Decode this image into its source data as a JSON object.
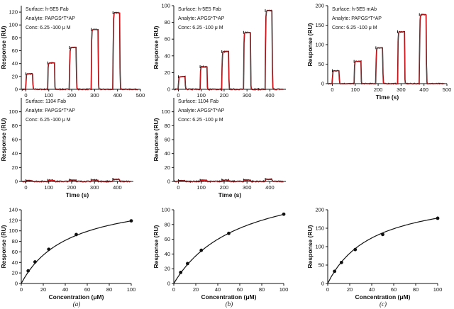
{
  "colors": {
    "sensorgram": "#111111",
    "fit": "#e0151b",
    "axis": "#111111"
  },
  "column_captions": [
    "(a)",
    "(b)",
    "(c)"
  ],
  "chart_data": [
    {
      "id": "a-top",
      "type": "line",
      "subtype": "sensorgram",
      "xlabel": "",
      "ylabel": "Response (RU)",
      "xlim": [
        -20,
        500
      ],
      "ylim": [
        0,
        130
      ],
      "xticks": [
        0,
        100,
        200,
        300,
        400,
        500
      ],
      "yticks": [
        0,
        20,
        40,
        60,
        80,
        100,
        120
      ],
      "annotations": [
        "Surface: h-5E5 Fab",
        "Analyte: PAPGS*T*AP",
        "Conc: 6.25 -100 μ M"
      ],
      "injections": [
        0,
        95,
        190,
        285,
        380
      ],
      "injection_duration": 30,
      "plateaus": [
        24,
        41,
        65,
        93,
        119
      ],
      "noise": 1.0
    },
    {
      "id": "b-top",
      "type": "line",
      "subtype": "sensorgram",
      "xlabel": "",
      "ylabel": "Response (RU)",
      "xlim": [
        -20,
        470
      ],
      "ylim": [
        0,
        100
      ],
      "xticks": [
        0,
        100,
        200,
        300,
        400
      ],
      "yticks": [
        0,
        20,
        40,
        60,
        80,
        100
      ],
      "annotations": [
        "Surface: h-5E5 Fab",
        "Analyte: APGS*T*AP",
        "Conc: 6.25 -100 μ M"
      ],
      "injections": [
        0,
        95,
        190,
        285,
        380
      ],
      "injection_duration": 30,
      "plateaus": [
        15,
        27,
        45,
        68,
        94
      ],
      "noise": 1.0
    },
    {
      "id": "c-top",
      "type": "line",
      "subtype": "sensorgram",
      "xlabel": "Time (s)",
      "ylabel": "Response (RU)",
      "xlim": [
        -20,
        500
      ],
      "ylim": [
        0,
        200
      ],
      "xticks": [
        0,
        100,
        200,
        300,
        400,
        500
      ],
      "yticks": [
        0,
        50,
        100,
        150,
        200
      ],
      "annotations": [
        "Surface: h-5E5 mAb",
        "Analyte: PAPGS*T*AP",
        "Conc: 6.25 -100 μ M"
      ],
      "injections": [
        0,
        95,
        190,
        285,
        380
      ],
      "injection_duration": 30,
      "plateaus": [
        33,
        57,
        92,
        133,
        177
      ],
      "noise": 1.5
    },
    {
      "id": "a-mid",
      "type": "line",
      "subtype": "sensorgram",
      "xlabel": "Time (s)",
      "ylabel": "Response (RU)",
      "xlim": [
        -20,
        470
      ],
      "ylim": [
        0,
        120
      ],
      "xticks": [
        0,
        100,
        200,
        300,
        400
      ],
      "yticks": [
        0,
        20,
        40,
        60,
        80,
        100
      ],
      "annotations": [
        "Surface: 1104 Fab",
        "Analyte: PAPGS*T*AP",
        "Conc: 6.25 -100 μ M"
      ],
      "injections": [
        0,
        95,
        190,
        285,
        380
      ],
      "injection_duration": 30,
      "plateaus": [
        1,
        1.5,
        2,
        2,
        3
      ],
      "noise": 1.2
    },
    {
      "id": "b-mid",
      "type": "line",
      "subtype": "sensorgram",
      "xlabel": "Time (s)",
      "ylabel": "Response (RU)",
      "xlim": [
        -20,
        470
      ],
      "ylim": [
        0,
        120
      ],
      "xticks": [
        0,
        100,
        200,
        300,
        400
      ],
      "yticks": [
        0,
        20,
        40,
        60,
        80,
        100
      ],
      "annotations": [
        "Surface: 1104 Fab",
        "Analyte: APGS*T*AP",
        "Conc: 6.25 -100 μ M"
      ],
      "injections": [
        0,
        95,
        190,
        285,
        380
      ],
      "injection_duration": 30,
      "plateaus": [
        1,
        1.5,
        2,
        2,
        3
      ],
      "noise": 1.2
    },
    {
      "id": "a-bot",
      "type": "scatter",
      "subtype": "binding-isotherm",
      "xlabel": "Concentration (μM)",
      "ylabel": "Response (RU)",
      "xlim": [
        0,
        100
      ],
      "ylim": [
        0,
        140
      ],
      "xticks": [
        0,
        20,
        40,
        60,
        80,
        100
      ],
      "yticks": [
        0,
        20,
        40,
        60,
        80,
        100,
        120,
        140
      ],
      "points": [
        [
          6.25,
          24
        ],
        [
          12.5,
          41
        ],
        [
          25,
          65
        ],
        [
          50,
          93
        ],
        [
          100,
          119
        ]
      ],
      "fit": {
        "Rmax": 170,
        "Kd": 43
      }
    },
    {
      "id": "b-bot",
      "type": "scatter",
      "subtype": "binding-isotherm",
      "xlabel": "Concentration (μM)",
      "ylabel": "Response (RU)",
      "xlim": [
        0,
        100
      ],
      "ylim": [
        0,
        100
      ],
      "xticks": [
        0,
        20,
        40,
        60,
        80,
        100
      ],
      "yticks": [
        0,
        20,
        40,
        60,
        80,
        100
      ],
      "points": [
        [
          6.25,
          15
        ],
        [
          12.5,
          27
        ],
        [
          25,
          45
        ],
        [
          50,
          68
        ],
        [
          100,
          94
        ]
      ],
      "fit": {
        "Rmax": 150,
        "Kd": 60
      }
    },
    {
      "id": "c-bot",
      "type": "scatter",
      "subtype": "binding-isotherm",
      "xlabel": "Concentration (μM)",
      "ylabel": "Response (RU)",
      "xlim": [
        0,
        100
      ],
      "ylim": [
        0,
        200
      ],
      "xticks": [
        0,
        20,
        40,
        60,
        80,
        100
      ],
      "yticks": [
        0,
        50,
        100,
        150,
        200
      ],
      "points": [
        [
          6.25,
          33
        ],
        [
          12.5,
          57
        ],
        [
          25,
          92
        ],
        [
          50,
          133
        ],
        [
          100,
          177
        ]
      ],
      "fit": {
        "Rmax": 250,
        "Kd": 41
      }
    }
  ]
}
